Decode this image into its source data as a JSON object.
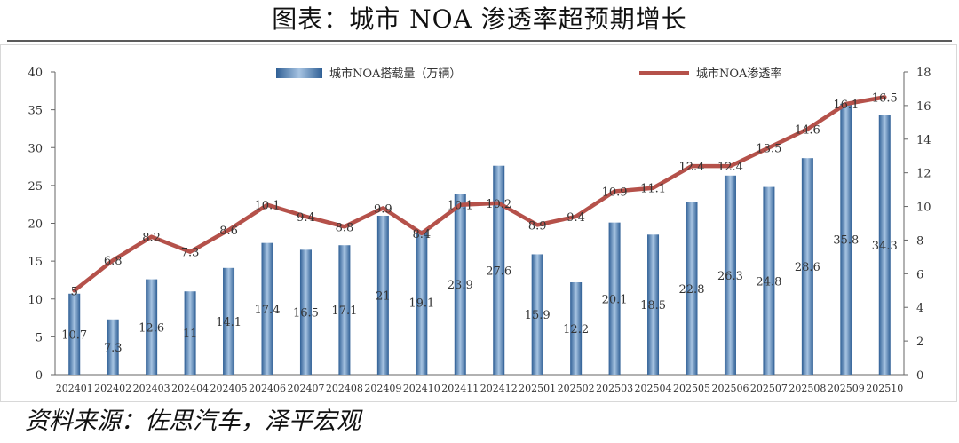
{
  "page": {
    "title": "图表：城市 NOA 渗透率超预期增长",
    "source": "资料来源：佐思汽车，泽平宏观"
  },
  "chart_data": {
    "type": "bar+line",
    "categories": [
      "202401",
      "202402",
      "202403",
      "202404",
      "202405",
      "202406",
      "202407",
      "202408",
      "202409",
      "202410",
      "202411",
      "202412",
      "202501",
      "202502",
      "202503",
      "202504",
      "202505",
      "202506",
      "202507",
      "202508",
      "202509",
      "202510"
    ],
    "series": [
      {
        "name": "城市NOA搭载量（万辆）",
        "type": "bar",
        "axis": "left",
        "color": "#4a7db0",
        "values": [
          10.7,
          7.3,
          12.6,
          11,
          14.1,
          17.4,
          16.5,
          17.1,
          21,
          19.1,
          23.9,
          27.6,
          15.9,
          12.2,
          20.1,
          18.5,
          22.8,
          26.3,
          24.8,
          28.6,
          35.8,
          34.3
        ],
        "labels": [
          "10.7",
          "7.3",
          "12.6",
          "11",
          "14.1",
          "17.4",
          "16.5",
          "17.1",
          "21",
          "19.1",
          "23.9",
          "27.6",
          "15.9",
          "12.2",
          "20.1",
          "18.5",
          "22.8",
          "26.3",
          "24.8",
          "28.6",
          "35.8",
          "34.3"
        ]
      },
      {
        "name": "城市NOA渗透率",
        "type": "line",
        "axis": "right",
        "color": "#b5514a",
        "values": [
          5,
          6.8,
          8.2,
          7.3,
          8.6,
          10.1,
          9.4,
          8.8,
          9.9,
          8.4,
          10.1,
          10.2,
          8.9,
          9.4,
          10.9,
          11.1,
          12.4,
          12.4,
          13.5,
          14.6,
          16.1,
          16.5
        ],
        "labels": [
          "5",
          "6.8",
          "8.2",
          "7.3",
          "8.6",
          "10.1",
          "9.4",
          "8.8",
          "9.9",
          "8.4",
          "10.1",
          "10.2",
          "8.9",
          "9.4",
          "10.9",
          "11.1",
          "12.4",
          "12.4",
          "13.5",
          "14.6",
          "16.1",
          "16.5"
        ]
      }
    ],
    "y_left": {
      "range": [
        0,
        40
      ],
      "ticks": [
        "0",
        "5",
        "10",
        "15",
        "20",
        "25",
        "30",
        "35",
        "40"
      ]
    },
    "y_right": {
      "range": [
        0,
        18
      ],
      "ticks": [
        "0",
        "2",
        "4",
        "6",
        "8",
        "10",
        "12",
        "14",
        "16",
        "18"
      ]
    },
    "grid": false,
    "legend": "top"
  }
}
